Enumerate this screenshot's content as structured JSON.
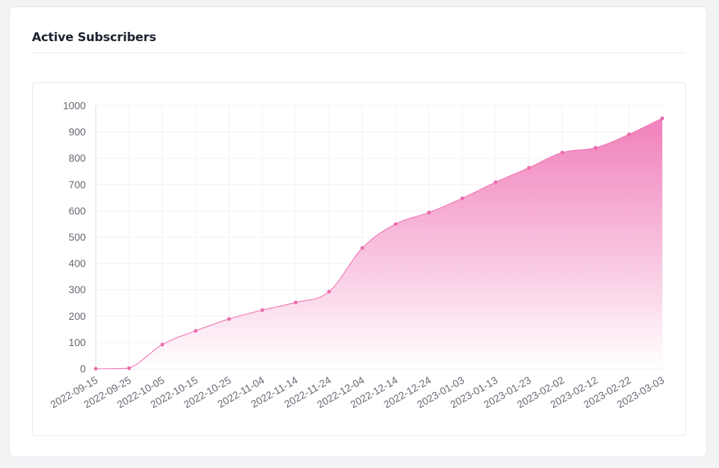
{
  "card": {
    "title": "Active Subscribers"
  },
  "chart_data": {
    "type": "area",
    "title": "",
    "xlabel": "",
    "ylabel": "",
    "x": [
      "2022-09-15",
      "2022-09-25",
      "2022-10-05",
      "2022-10-15",
      "2022-10-25",
      "2022-11-04",
      "2022-11-14",
      "2022-11-24",
      "2022-12-04",
      "2022-12-14",
      "2022-12-24",
      "2023-01-03",
      "2023-01-13",
      "2023-01-23",
      "2023-02-02",
      "2023-02-12",
      "2023-02-22",
      "2023-03-03"
    ],
    "y": [
      0,
      2,
      92,
      144,
      189,
      223,
      252,
      293,
      459,
      550,
      594,
      648,
      709,
      764,
      822,
      840,
      891,
      952
    ],
    "ylim": [
      0,
      1000
    ],
    "yticks": [
      "0",
      "100",
      "200",
      "300",
      "400",
      "500",
      "600",
      "700",
      "800",
      "900",
      "1000"
    ],
    "grid": true,
    "legend": "none",
    "colors": {
      "line": "#f07ab8",
      "point": "#ee69ad",
      "fill_top": "#f07ab8",
      "fill_bottom": "#ffffff",
      "grid": "#f1f1f3",
      "axis": "#d6d8dc"
    }
  }
}
